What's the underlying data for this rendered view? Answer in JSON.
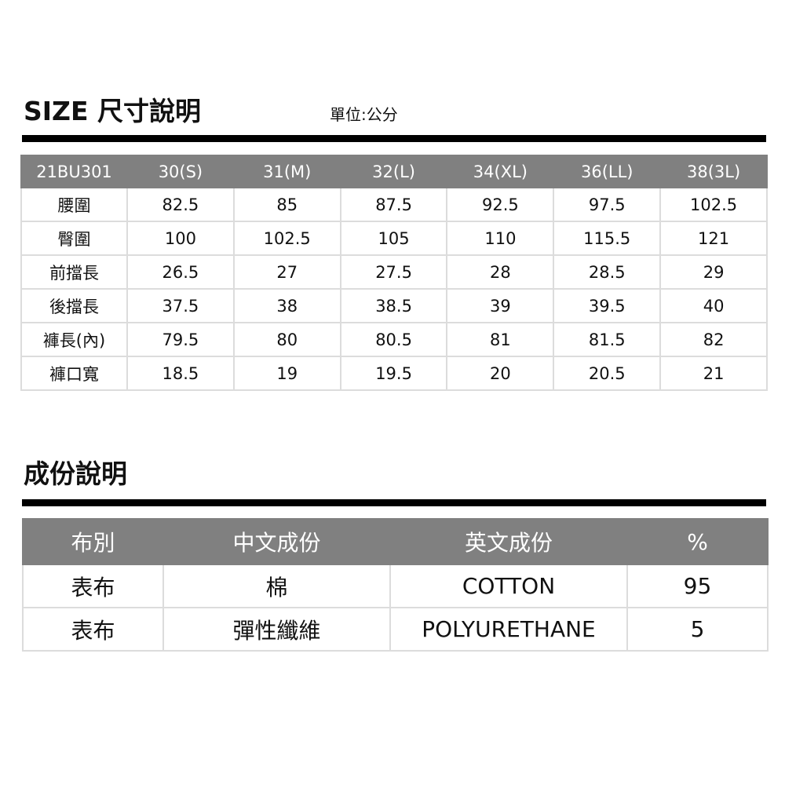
{
  "size_section": {
    "title": "SIZE 尺寸說明",
    "unit": "單位:公分",
    "headers": [
      "21BU301",
      "30(S)",
      "31(M)",
      "32(L)",
      "34(XL)",
      "36(LL)",
      "38(3L)"
    ],
    "rows": [
      [
        "腰圍",
        "82.5",
        "85",
        "87.5",
        "92.5",
        "97.5",
        "102.5"
      ],
      [
        "臀圍",
        "100",
        "102.5",
        "105",
        "110",
        "115.5",
        "121"
      ],
      [
        "前擋長",
        "26.5",
        "27",
        "27.5",
        "28",
        "28.5",
        "29"
      ],
      [
        "後擋長",
        "37.5",
        "38",
        "38.5",
        "39",
        "39.5",
        "40"
      ],
      [
        "褲長(內)",
        "79.5",
        "80",
        "80.5",
        "81",
        "81.5",
        "82"
      ],
      [
        "褲口寬",
        "18.5",
        "19",
        "19.5",
        "20",
        "20.5",
        "21"
      ]
    ]
  },
  "composition_section": {
    "title": "成份說明",
    "headers": [
      "布別",
      "中文成份",
      "英文成份",
      "%"
    ],
    "rows": [
      [
        "表布",
        "棉",
        "COTTON",
        "95"
      ],
      [
        "表布",
        "彈性纖維",
        "POLYURETHANE",
        "5"
      ]
    ]
  },
  "colors": {
    "header_bg": "#808080",
    "border": "#dcdcdc",
    "bar": "#000000"
  }
}
